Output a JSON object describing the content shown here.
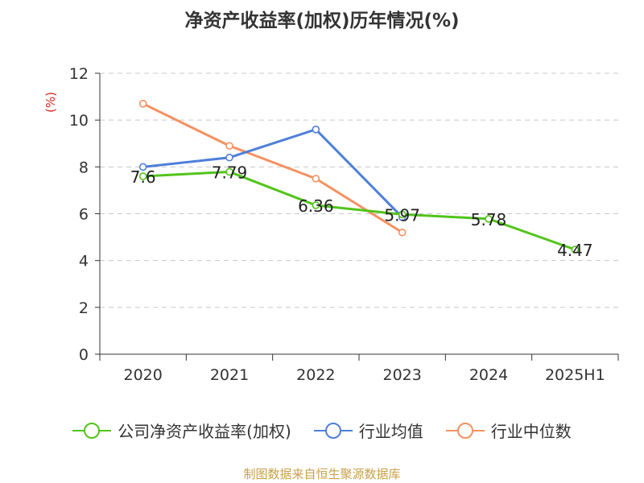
{
  "title": "净资产收益率(加权)历年情况(%)",
  "source": "制图数据来自恒生聚源数据库",
  "chart_data": {
    "type": "line",
    "title": "净资产收益率(加权)历年情况(%)",
    "ylabel": "(%)",
    "xlabel": "",
    "categories": [
      "2020",
      "2021",
      "2022",
      "2023",
      "2024",
      "2025H1"
    ],
    "ylim": [
      0,
      12
    ],
    "yticks": [
      0,
      2,
      4,
      6,
      8,
      10,
      12
    ],
    "grid": true,
    "legend_position": "bottom",
    "series": [
      {
        "name": "公司净资产收益率(加权)",
        "color": "#52c41a",
        "values": [
          7.6,
          7.79,
          6.36,
          5.97,
          5.78,
          4.47
        ],
        "data_labels": [
          "7.6",
          "7.79",
          "6.36",
          "5.97",
          "5.78",
          "4.47"
        ]
      },
      {
        "name": "行业均值",
        "color": "#4e7fd9",
        "values": [
          8.0,
          8.4,
          9.6,
          5.85,
          null,
          null
        ]
      },
      {
        "name": "行业中位数",
        "color": "#f59160",
        "values": [
          10.7,
          8.9,
          7.5,
          5.2,
          null,
          null
        ]
      }
    ]
  }
}
